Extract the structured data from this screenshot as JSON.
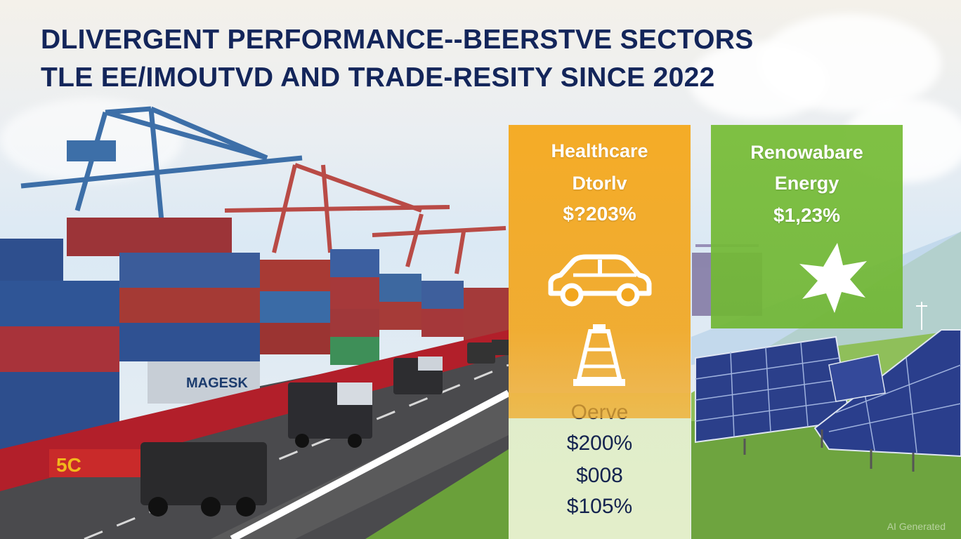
{
  "title": {
    "line1": "DLIVERGENT PERFORMANCE--BEERSTVE SECTORS",
    "line2": "TLE EE/IMOUTVD AND TRADE-RESITY SINCE 2022"
  },
  "panels": {
    "orange": {
      "label_line1": "Healthcare",
      "label_line2": "Dtorlv",
      "value": "$?203%",
      "icons": [
        "car-icon",
        "oil-derrick-icon"
      ],
      "color": "#f2a61e"
    },
    "green": {
      "label_line1": "Renowabare",
      "label_line2": "Energy",
      "value": "$1,23%",
      "icons": [
        "star-burst-icon"
      ],
      "color": "#76b83a"
    },
    "lower": {
      "label": "Oerve",
      "values": [
        "$200%",
        "$008",
        "$105%"
      ]
    }
  },
  "container_brand": "MAGESK",
  "watermark": "AI Generated",
  "colors": {
    "title": "#13255a",
    "lower_text": "#14234f"
  }
}
